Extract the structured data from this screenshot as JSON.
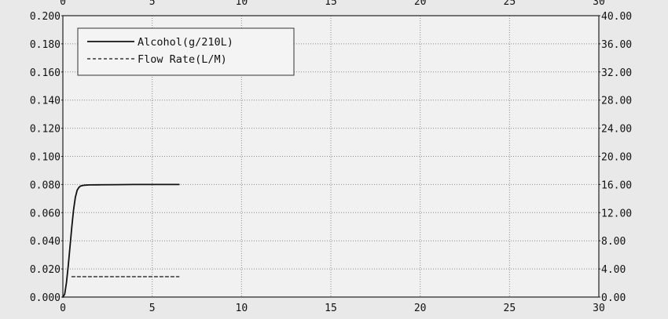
{
  "chart_data": {
    "type": "line",
    "title": "",
    "xlabel": "",
    "ylabel": "",
    "y2label": "",
    "xlim": [
      0,
      30
    ],
    "ylim": [
      0,
      0.2
    ],
    "y2lim": [
      0,
      40
    ],
    "x_ticks": [
      0,
      5,
      10,
      15,
      20,
      25,
      30
    ],
    "x_tick_labels": [
      "0",
      "5",
      "10",
      "15",
      "20",
      "25",
      "30"
    ],
    "x_top_tick_labels": [
      "0",
      "5",
      "10",
      "15",
      "20",
      "25",
      "30"
    ],
    "y_ticks": [
      0,
      0.02,
      0.04,
      0.06,
      0.08,
      0.1,
      0.12,
      0.14,
      0.16,
      0.18,
      0.2
    ],
    "y_tick_labels": [
      "0.000",
      "0.020",
      "0.040",
      "0.060",
      "0.080",
      "0.100",
      "0.120",
      "0.140",
      "0.160",
      "0.180",
      "0.200"
    ],
    "y2_ticks": [
      0,
      4,
      8,
      12,
      16,
      20,
      24,
      28,
      32,
      36,
      40
    ],
    "y2_tick_labels": [
      "0.00",
      "4.00",
      "8.00",
      "12.00",
      "16.00",
      "20.00",
      "24.00",
      "28.00",
      "32.00",
      "36.00",
      "40.00"
    ],
    "grid": true,
    "legend_position": "top-left",
    "series": [
      {
        "name": "Alcohol(g/210L)",
        "axis": "left",
        "style": "solid",
        "color": "#111111",
        "x": [
          0,
          0.1,
          0.2,
          0.3,
          0.4,
          0.5,
          0.6,
          0.7,
          0.8,
          0.9,
          1.0,
          1.2,
          1.5,
          2.0,
          3.0,
          4.0,
          5.0,
          6.0,
          6.5
        ],
        "y": [
          0,
          0.002,
          0.01,
          0.022,
          0.036,
          0.05,
          0.062,
          0.071,
          0.076,
          0.078,
          0.079,
          0.0795,
          0.0797,
          0.0798,
          0.0799,
          0.08,
          0.08,
          0.08,
          0.08
        ]
      },
      {
        "name": "Flow Rate(L/M)",
        "axis": "right",
        "style": "dashed",
        "color": "#111111",
        "x": [
          0.5,
          6.5
        ],
        "y": [
          2.9,
          2.9
        ]
      }
    ]
  }
}
